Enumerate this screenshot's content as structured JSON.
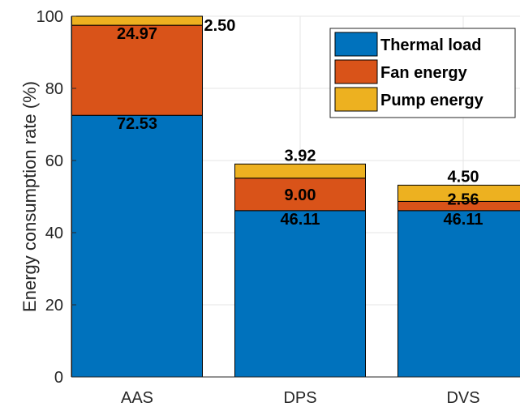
{
  "chart_data": {
    "type": "bar",
    "stacked": true,
    "categories": [
      "AAS",
      "DPS",
      "DVS"
    ],
    "series": [
      {
        "name": "Thermal load",
        "color": "#0072BD",
        "values": [
          72.53,
          46.11,
          46.11
        ]
      },
      {
        "name": "Fan energy",
        "color": "#D95319",
        "values": [
          24.97,
          9.0,
          2.56
        ]
      },
      {
        "name": "Pump energy",
        "color": "#EDB120",
        "values": [
          2.5,
          3.92,
          4.5
        ]
      }
    ],
    "data_labels": [
      [
        "72.53",
        "46.11",
        "46.11"
      ],
      [
        "24.97",
        "9.00",
        "2.56"
      ],
      [
        "2.50",
        "3.92",
        "4.50"
      ]
    ],
    "title": "",
    "xlabel": "",
    "ylabel": "Energy consumption rate (%)",
    "ylim": [
      0,
      100
    ],
    "yticks": [
      0,
      20,
      40,
      60,
      80,
      100
    ],
    "grid": true,
    "legend_position": "top-right"
  }
}
